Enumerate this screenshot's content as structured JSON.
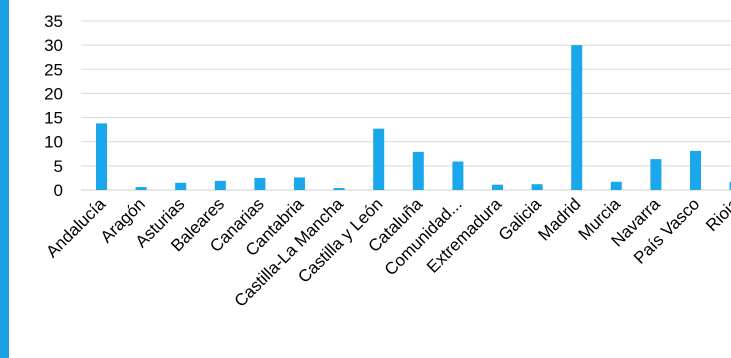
{
  "colors": {
    "accent": "#1BA1E2",
    "bar": "#1AA7EC",
    "grid": "#D9D9D9"
  },
  "chart_data": {
    "type": "bar",
    "title": "",
    "xlabel": "",
    "ylabel": "",
    "ylim": [
      0,
      35
    ],
    "yticks": [
      0,
      5,
      10,
      15,
      20,
      25,
      30,
      35
    ],
    "grid": true,
    "legend": "none",
    "categories": [
      "Andalucía",
      "Aragón",
      "Asturias",
      "Baleares",
      "Canarias",
      "Cantabria",
      "Castilla-La Mancha",
      "Castilla y León",
      "Cataluña",
      "Comunidad...",
      "Extremadura",
      "Galicia",
      "Madrid",
      "Murcia",
      "Navarra",
      "País Vasco",
      "Rioja"
    ],
    "values": [
      13.8,
      0.6,
      1.5,
      1.9,
      2.5,
      2.6,
      0.4,
      12.7,
      7.9,
      5.9,
      1.1,
      1.2,
      30,
      1.7,
      6.4,
      8.1,
      1.7
    ]
  }
}
